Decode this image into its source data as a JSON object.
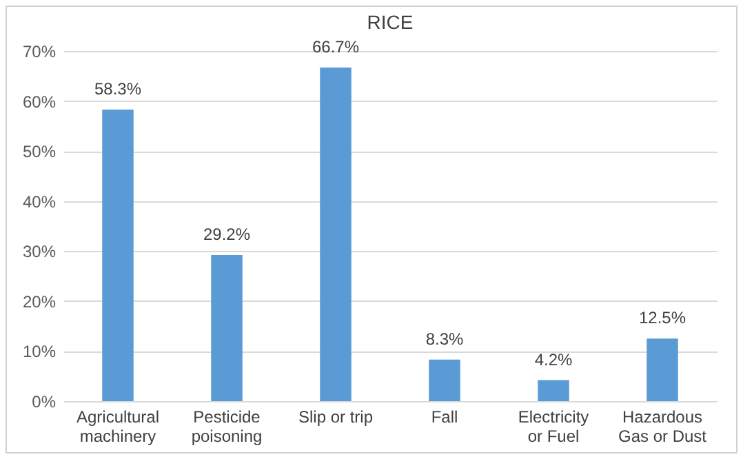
{
  "chart_data": {
    "type": "bar",
    "title": "RICE",
    "categories": [
      "Agricultural machinery",
      "Pesticide poisoning",
      "Slip or trip",
      "Fall",
      "Electricity or Fuel",
      "Hazardous Gas or Dust"
    ],
    "values": [
      58.3,
      29.2,
      66.7,
      8.3,
      4.2,
      12.5
    ],
    "value_labels": [
      "58.3%",
      "29.2%",
      "66.7%",
      "8.3%",
      "4.2%",
      "12.5%"
    ],
    "color": "#5b9bd5",
    "ylim": [
      0,
      70
    ],
    "yticks": [
      {
        "value": 0,
        "label": "0%"
      },
      {
        "value": 10,
        "label": "10%"
      },
      {
        "value": 20,
        "label": "20%"
      },
      {
        "value": 30,
        "label": "30%"
      },
      {
        "value": 40,
        "label": "40%"
      },
      {
        "value": 50,
        "label": "50%"
      },
      {
        "value": 60,
        "label": "60%"
      },
      {
        "value": 70,
        "label": "70%"
      }
    ],
    "grid": "y"
  }
}
